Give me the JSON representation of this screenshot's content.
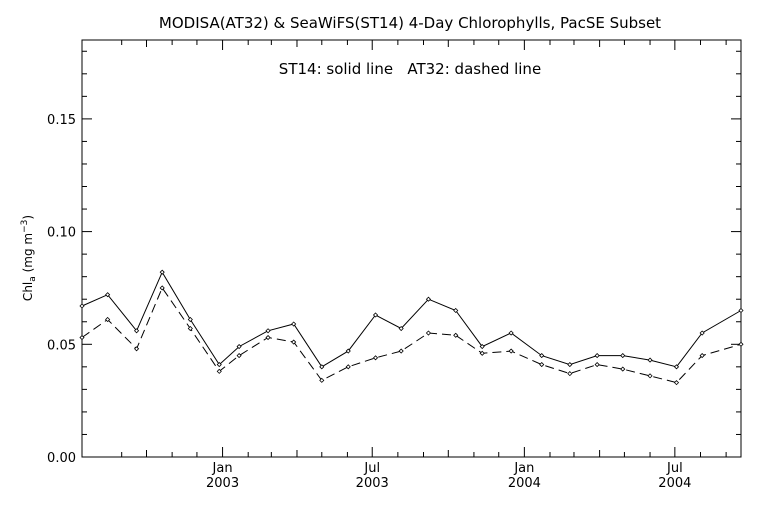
{
  "chart_data": {
    "type": "line",
    "title": "MODISA(AT32) & SeaWiFS(ST14) 4-Day Chlorophylls, PacSE Subset",
    "annotation": "ST14: solid line   AT32: dashed line",
    "ylabel": {
      "base": "Chl",
      "sub": "a",
      "units_open": " (mg m",
      "sup": "−3",
      "units_close": ")"
    },
    "ylim": [
      0,
      0.185
    ],
    "y_ticks": [
      {
        "value": 0.0,
        "label": "0.00"
      },
      {
        "value": 0.05,
        "label": "0.05"
      },
      {
        "value": 0.1,
        "label": "0.10"
      },
      {
        "value": 0.15,
        "label": "0.15"
      }
    ],
    "xlim": [
      "2002-07-15",
      "2004-09-19"
    ],
    "x_ticks": [
      {
        "date": "2003-01-01",
        "month": "Jan",
        "year": "2003"
      },
      {
        "date": "2003-07-01",
        "month": "Jul",
        "year": "2003"
      },
      {
        "date": "2004-01-01",
        "month": "Jan",
        "year": "2004"
      },
      {
        "date": "2004-07-01",
        "month": "Jul",
        "year": "2004"
      }
    ],
    "grid": false,
    "legend": "none",
    "series": [
      {
        "name": "ST14",
        "style": "solid",
        "x": [
          "2002-07-15",
          "2002-08-15",
          "2002-09-19",
          "2002-10-20",
          "2002-11-23",
          "2002-12-28",
          "2003-01-21",
          "2003-02-25",
          "2003-03-28",
          "2003-05-01",
          "2003-06-02",
          "2003-07-05",
          "2003-08-05",
          "2003-09-07",
          "2003-10-10",
          "2003-11-11",
          "2003-12-16",
          "2004-01-22",
          "2004-02-25",
          "2004-03-29",
          "2004-04-29",
          "2004-06-01",
          "2004-07-03",
          "2004-08-03",
          "2004-09-19"
        ],
        "y": [
          0.067,
          0.072,
          0.056,
          0.082,
          0.061,
          0.041,
          0.049,
          0.056,
          0.059,
          0.04,
          0.047,
          0.063,
          0.057,
          0.07,
          0.065,
          0.049,
          0.055,
          0.045,
          0.041,
          0.045,
          0.045,
          0.043,
          0.04,
          0.055,
          0.065
        ]
      },
      {
        "name": "AT32",
        "style": "dashed",
        "x": [
          "2002-07-15",
          "2002-08-15",
          "2002-09-19",
          "2002-10-20",
          "2002-11-23",
          "2002-12-28",
          "2003-01-21",
          "2003-02-25",
          "2003-03-28",
          "2003-05-01",
          "2003-06-02",
          "2003-07-05",
          "2003-08-05",
          "2003-09-07",
          "2003-10-10",
          "2003-11-11",
          "2003-12-16",
          "2004-01-22",
          "2004-02-25",
          "2004-03-29",
          "2004-04-29",
          "2004-06-01",
          "2004-07-03",
          "2004-08-03",
          "2004-09-19"
        ],
        "y": [
          0.053,
          0.061,
          0.048,
          0.075,
          0.057,
          0.038,
          0.045,
          0.053,
          0.051,
          0.034,
          0.04,
          0.044,
          0.047,
          0.055,
          0.054,
          0.046,
          0.047,
          0.041,
          0.037,
          0.041,
          0.039,
          0.036,
          0.033,
          0.045,
          0.05
        ]
      }
    ]
  }
}
